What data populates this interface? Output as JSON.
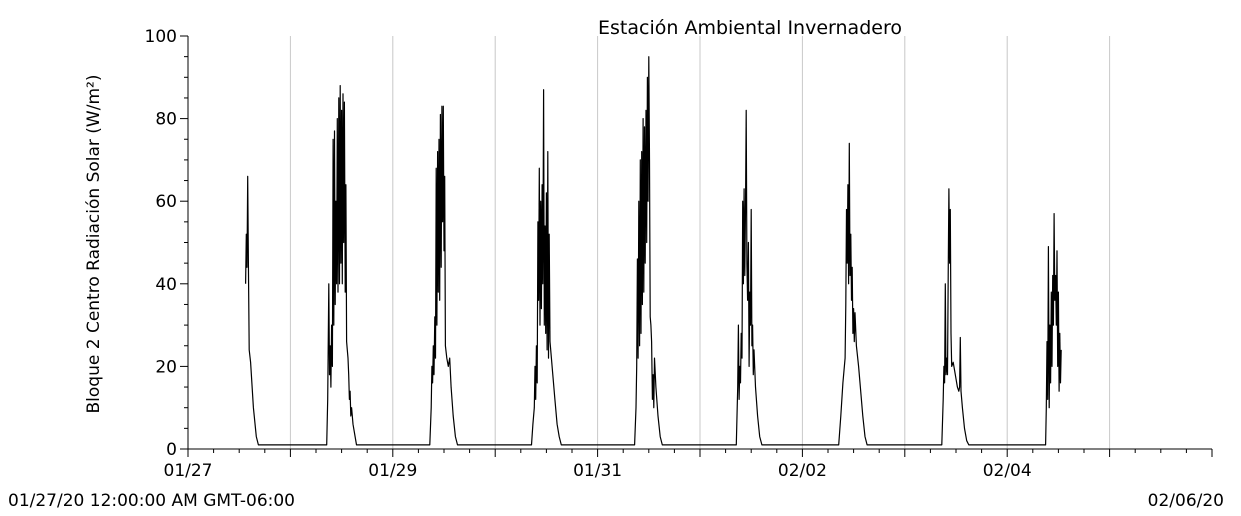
{
  "chart_data": {
    "type": "line",
    "title": "Estación Ambiental Invernadero",
    "ylabel": "Bloque 2 Centro Radiación Solar (W/m²)",
    "xlabel": "",
    "ylim": [
      0,
      100
    ],
    "xlim": [
      "2020-01-27T00:00",
      "2020-02-06T00:00"
    ],
    "y_ticks": [
      0,
      20,
      40,
      60,
      80,
      100
    ],
    "x_tick_labels": [
      {
        "x": "2020-01-27",
        "label": "01/27"
      },
      {
        "x": "2020-01-29",
        "label": "01/29"
      },
      {
        "x": "2020-01-31",
        "label": "01/31"
      },
      {
        "x": "2020-02-02",
        "label": "02/02"
      },
      {
        "x": "2020-02-04",
        "label": "02/04"
      }
    ],
    "x_gridlines": [
      "2020-01-28",
      "2020-01-29",
      "2020-01-30",
      "2020-01-31",
      "2020-02-01",
      "2020-02-02",
      "2020-02-03",
      "2020-02-04",
      "2020-02-05"
    ],
    "range_start_label": "01/27/20 12:00:00 AM GMT-06:00",
    "range_end_label": "02/06/20",
    "grid": "vertical",
    "legend": "none",
    "line_color": "#000000",
    "grid_color": "#c8c8c8",
    "series": [
      {
        "points": [
          [
            "2020-01-27T13:30",
            40
          ],
          [
            "2020-01-27T13:40",
            52
          ],
          [
            "2020-01-27T13:50",
            44
          ],
          [
            "2020-01-27T14:00",
            66
          ],
          [
            "2020-01-27T14:10",
            45
          ],
          [
            "2020-01-27T14:20",
            24
          ],
          [
            "2020-01-27T14:40",
            21
          ],
          [
            "2020-01-27T15:20",
            10
          ],
          [
            "2020-01-27T16:00",
            3
          ],
          [
            "2020-01-27T16:30",
            1
          ],
          [
            "2020-01-28T08:30",
            1
          ],
          [
            "2020-01-28T08:45",
            12
          ],
          [
            "2020-01-28T09:00",
            40
          ],
          [
            "2020-01-28T09:10",
            18
          ],
          [
            "2020-01-28T09:20",
            25
          ],
          [
            "2020-01-28T09:30",
            15
          ],
          [
            "2020-01-28T09:40",
            30
          ],
          [
            "2020-01-28T09:50",
            20
          ],
          [
            "2020-01-28T10:00",
            75
          ],
          [
            "2020-01-28T10:10",
            30
          ],
          [
            "2020-01-28T10:20",
            77
          ],
          [
            "2020-01-28T10:30",
            35
          ],
          [
            "2020-01-28T10:40",
            60
          ],
          [
            "2020-01-28T10:50",
            40
          ],
          [
            "2020-01-28T11:00",
            80
          ],
          [
            "2020-01-28T11:10",
            38
          ],
          [
            "2020-01-28T11:20",
            85
          ],
          [
            "2020-01-28T11:30",
            40
          ],
          [
            "2020-01-28T11:40",
            88
          ],
          [
            "2020-01-28T11:50",
            45
          ],
          [
            "2020-01-28T12:00",
            82
          ],
          [
            "2020-01-28T12:10",
            40
          ],
          [
            "2020-01-28T12:20",
            86
          ],
          [
            "2020-01-28T12:30",
            50
          ],
          [
            "2020-01-28T12:40",
            84
          ],
          [
            "2020-01-28T12:50",
            38
          ],
          [
            "2020-01-28T13:00",
            64
          ],
          [
            "2020-01-28T13:10",
            26
          ],
          [
            "2020-01-28T13:20",
            24
          ],
          [
            "2020-01-28T13:30",
            22
          ],
          [
            "2020-01-28T13:40",
            18
          ],
          [
            "2020-01-28T13:50",
            12
          ],
          [
            "2020-01-28T14:00",
            14
          ],
          [
            "2020-01-28T14:10",
            8
          ],
          [
            "2020-01-28T14:20",
            10
          ],
          [
            "2020-01-28T14:40",
            6
          ],
          [
            "2020-01-28T15:10",
            3
          ],
          [
            "2020-01-28T15:30",
            1
          ],
          [
            "2020-01-29T08:40",
            1
          ],
          [
            "2020-01-29T09:00",
            10
          ],
          [
            "2020-01-29T09:10",
            20
          ],
          [
            "2020-01-29T09:20",
            16
          ],
          [
            "2020-01-29T09:30",
            25
          ],
          [
            "2020-01-29T09:40",
            18
          ],
          [
            "2020-01-29T09:50",
            32
          ],
          [
            "2020-01-29T10:00",
            22
          ],
          [
            "2020-01-29T10:10",
            68
          ],
          [
            "2020-01-29T10:20",
            30
          ],
          [
            "2020-01-29T10:30",
            72
          ],
          [
            "2020-01-29T10:40",
            38
          ],
          [
            "2020-01-29T10:50",
            75
          ],
          [
            "2020-01-29T11:00",
            36
          ],
          [
            "2020-01-29T11:10",
            81
          ],
          [
            "2020-01-29T11:20",
            44
          ],
          [
            "2020-01-29T11:30",
            83
          ],
          [
            "2020-01-29T11:40",
            55
          ],
          [
            "2020-01-29T11:50",
            83
          ],
          [
            "2020-01-29T12:00",
            48
          ],
          [
            "2020-01-29T12:10",
            66
          ],
          [
            "2020-01-29T12:20",
            25
          ],
          [
            "2020-01-29T12:40",
            22
          ],
          [
            "2020-01-29T13:00",
            20
          ],
          [
            "2020-01-29T13:20",
            22
          ],
          [
            "2020-01-29T13:40",
            15
          ],
          [
            "2020-01-29T14:10",
            8
          ],
          [
            "2020-01-29T14:40",
            3
          ],
          [
            "2020-01-29T15:10",
            1
          ],
          [
            "2020-01-30T08:30",
            1
          ],
          [
            "2020-01-30T08:50",
            6
          ],
          [
            "2020-01-30T09:10",
            10
          ],
          [
            "2020-01-30T09:20",
            20
          ],
          [
            "2020-01-30T09:30",
            12
          ],
          [
            "2020-01-30T09:40",
            25
          ],
          [
            "2020-01-30T09:50",
            16
          ],
          [
            "2020-01-30T10:00",
            55
          ],
          [
            "2020-01-30T10:10",
            36
          ],
          [
            "2020-01-30T10:20",
            68
          ],
          [
            "2020-01-30T10:30",
            30
          ],
          [
            "2020-01-30T10:40",
            60
          ],
          [
            "2020-01-30T10:50",
            34
          ],
          [
            "2020-01-30T11:00",
            64
          ],
          [
            "2020-01-30T11:10",
            40
          ],
          [
            "2020-01-30T11:20",
            87
          ],
          [
            "2020-01-30T11:30",
            30
          ],
          [
            "2020-01-30T11:40",
            54
          ],
          [
            "2020-01-30T11:50",
            28
          ],
          [
            "2020-01-30T12:00",
            62
          ],
          [
            "2020-01-30T12:10",
            24
          ],
          [
            "2020-01-30T12:20",
            72
          ],
          [
            "2020-01-30T12:30",
            22
          ],
          [
            "2020-01-30T12:40",
            52
          ],
          [
            "2020-01-30T12:50",
            26
          ],
          [
            "2020-01-30T13:10",
            22
          ],
          [
            "2020-01-30T13:30",
            18
          ],
          [
            "2020-01-30T14:00",
            12
          ],
          [
            "2020-01-30T14:30",
            6
          ],
          [
            "2020-01-30T15:00",
            3
          ],
          [
            "2020-01-30T15:30",
            1
          ],
          [
            "2020-01-31T08:40",
            1
          ],
          [
            "2020-01-31T09:00",
            10
          ],
          [
            "2020-01-31T09:10",
            20
          ],
          [
            "2020-01-31T09:20",
            46
          ],
          [
            "2020-01-31T09:30",
            22
          ],
          [
            "2020-01-31T09:40",
            60
          ],
          [
            "2020-01-31T09:50",
            25
          ],
          [
            "2020-01-31T10:00",
            70
          ],
          [
            "2020-01-31T10:10",
            28
          ],
          [
            "2020-01-31T10:20",
            72
          ],
          [
            "2020-01-31T10:30",
            35
          ],
          [
            "2020-01-31T10:40",
            80
          ],
          [
            "2020-01-31T10:50",
            38
          ],
          [
            "2020-01-31T11:00",
            78
          ],
          [
            "2020-01-31T11:10",
            45
          ],
          [
            "2020-01-31T11:20",
            82
          ],
          [
            "2020-01-31T11:30",
            50
          ],
          [
            "2020-01-31T11:40",
            90
          ],
          [
            "2020-01-31T11:50",
            60
          ],
          [
            "2020-01-31T12:00",
            95
          ],
          [
            "2020-01-31T12:10",
            70
          ],
          [
            "2020-01-31T12:20",
            32
          ],
          [
            "2020-01-31T12:30",
            30
          ],
          [
            "2020-01-31T12:40",
            26
          ],
          [
            "2020-01-31T12:50",
            12
          ],
          [
            "2020-01-31T13:00",
            18
          ],
          [
            "2020-01-31T13:10",
            10
          ],
          [
            "2020-01-31T13:20",
            22
          ],
          [
            "2020-01-31T13:40",
            15
          ],
          [
            "2020-01-31T14:10",
            8
          ],
          [
            "2020-01-31T14:40",
            3
          ],
          [
            "2020-01-31T15:10",
            1
          ],
          [
            "2020-02-01T08:30",
            1
          ],
          [
            "2020-02-01T08:50",
            15
          ],
          [
            "2020-02-01T09:00",
            30
          ],
          [
            "2020-02-01T09:10",
            12
          ],
          [
            "2020-02-01T09:20",
            20
          ],
          [
            "2020-02-01T09:30",
            16
          ],
          [
            "2020-02-01T09:40",
            28
          ],
          [
            "2020-02-01T09:50",
            22
          ],
          [
            "2020-02-01T10:00",
            60
          ],
          [
            "2020-02-01T10:10",
            40
          ],
          [
            "2020-02-01T10:20",
            63
          ],
          [
            "2020-02-01T10:30",
            42
          ],
          [
            "2020-02-01T10:40",
            58
          ],
          [
            "2020-02-01T10:50",
            82
          ],
          [
            "2020-02-01T11:00",
            45
          ],
          [
            "2020-02-01T11:10",
            36
          ],
          [
            "2020-02-01T11:20",
            50
          ],
          [
            "2020-02-01T11:30",
            20
          ],
          [
            "2020-02-01T11:40",
            38
          ],
          [
            "2020-02-01T11:50",
            30
          ],
          [
            "2020-02-01T12:00",
            58
          ],
          [
            "2020-02-01T12:10",
            25
          ],
          [
            "2020-02-01T12:20",
            30
          ],
          [
            "2020-02-01T12:30",
            18
          ],
          [
            "2020-02-01T12:40",
            24
          ],
          [
            "2020-02-01T13:00",
            15
          ],
          [
            "2020-02-01T13:30",
            8
          ],
          [
            "2020-02-01T14:00",
            3
          ],
          [
            "2020-02-01T14:30",
            1
          ],
          [
            "2020-02-02T08:30",
            1
          ],
          [
            "2020-02-02T09:00",
            8
          ],
          [
            "2020-02-02T09:30",
            16
          ],
          [
            "2020-02-02T10:00",
            22
          ],
          [
            "2020-02-02T10:10",
            35
          ],
          [
            "2020-02-02T10:20",
            58
          ],
          [
            "2020-02-02T10:30",
            45
          ],
          [
            "2020-02-02T10:40",
            64
          ],
          [
            "2020-02-02T10:50",
            40
          ],
          [
            "2020-02-02T11:00",
            74
          ],
          [
            "2020-02-02T11:10",
            42
          ],
          [
            "2020-02-02T11:20",
            52
          ],
          [
            "2020-02-02T11:30",
            36
          ],
          [
            "2020-02-02T11:40",
            44
          ],
          [
            "2020-02-02T11:50",
            28
          ],
          [
            "2020-02-02T12:00",
            34
          ],
          [
            "2020-02-02T12:10",
            26
          ],
          [
            "2020-02-02T12:20",
            33
          ],
          [
            "2020-02-02T12:40",
            25
          ],
          [
            "2020-02-02T13:10",
            20
          ],
          [
            "2020-02-02T13:40",
            14
          ],
          [
            "2020-02-02T14:10",
            8
          ],
          [
            "2020-02-02T14:40",
            3
          ],
          [
            "2020-02-02T15:10",
            1
          ],
          [
            "2020-02-03T08:40",
            1
          ],
          [
            "2020-02-03T09:00",
            12
          ],
          [
            "2020-02-03T09:10",
            20
          ],
          [
            "2020-02-03T09:20",
            16
          ],
          [
            "2020-02-03T09:30",
            40
          ],
          [
            "2020-02-03T09:40",
            18
          ],
          [
            "2020-02-03T09:50",
            22
          ],
          [
            "2020-02-03T10:00",
            18
          ],
          [
            "2020-02-03T10:10",
            42
          ],
          [
            "2020-02-03T10:20",
            63
          ],
          [
            "2020-02-03T10:30",
            45
          ],
          [
            "2020-02-03T10:40",
            58
          ],
          [
            "2020-02-03T10:50",
            28
          ],
          [
            "2020-02-03T11:00",
            20
          ],
          [
            "2020-02-03T11:20",
            21
          ],
          [
            "2020-02-03T11:40",
            19
          ],
          [
            "2020-02-03T12:00",
            17
          ],
          [
            "2020-02-03T12:20",
            15
          ],
          [
            "2020-02-03T12:40",
            14
          ],
          [
            "2020-02-03T12:50",
            15
          ],
          [
            "2020-02-03T13:00",
            27
          ],
          [
            "2020-02-03T13:10",
            14
          ],
          [
            "2020-02-03T13:30",
            10
          ],
          [
            "2020-02-03T14:00",
            5
          ],
          [
            "2020-02-03T14:30",
            2
          ],
          [
            "2020-02-03T15:00",
            1
          ],
          [
            "2020-02-04T09:00",
            1
          ],
          [
            "2020-02-04T09:10",
            10
          ],
          [
            "2020-02-04T09:20",
            26
          ],
          [
            "2020-02-04T09:30",
            12
          ],
          [
            "2020-02-04T09:40",
            49
          ],
          [
            "2020-02-04T09:50",
            10
          ],
          [
            "2020-02-04T10:00",
            30
          ],
          [
            "2020-02-04T10:10",
            16
          ],
          [
            "2020-02-04T10:20",
            38
          ],
          [
            "2020-02-04T10:30",
            20
          ],
          [
            "2020-02-04T10:40",
            42
          ],
          [
            "2020-02-04T10:50",
            30
          ],
          [
            "2020-02-04T11:00",
            57
          ],
          [
            "2020-02-04T11:10",
            36
          ],
          [
            "2020-02-04T11:20",
            42
          ],
          [
            "2020-02-04T11:30",
            30
          ],
          [
            "2020-02-04T11:40",
            48
          ],
          [
            "2020-02-04T11:50",
            20
          ],
          [
            "2020-02-04T12:00",
            38
          ],
          [
            "2020-02-04T12:10",
            14
          ],
          [
            "2020-02-04T12:20",
            28
          ],
          [
            "2020-02-04T12:30",
            16
          ],
          [
            "2020-02-04T12:40",
            24
          ]
        ]
      }
    ]
  }
}
